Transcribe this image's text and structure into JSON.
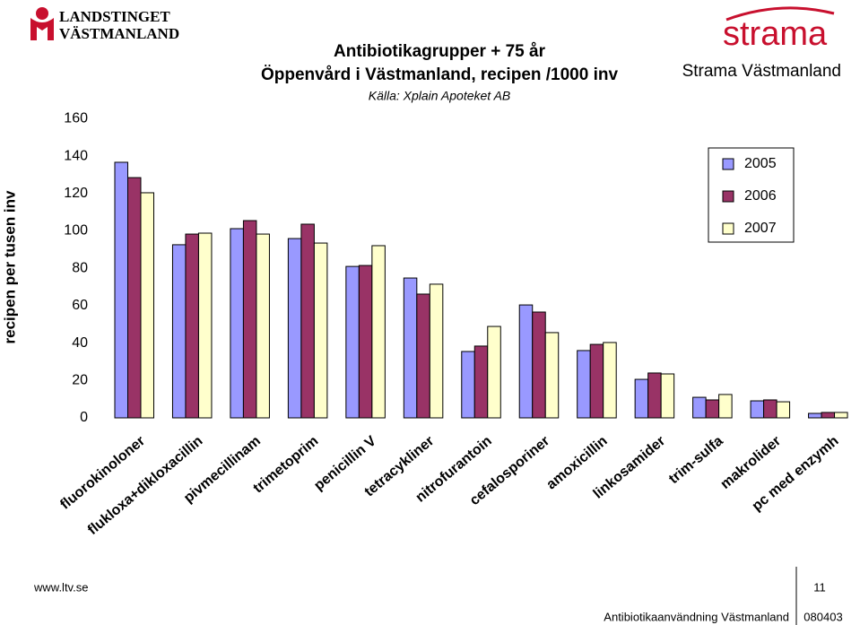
{
  "header": {
    "logo_line1": "LANDSTINGET",
    "logo_line2": "VÄSTMANLAND",
    "brand": "strama",
    "brand_sub": "Strama Västmanland"
  },
  "chart_data": {
    "type": "bar",
    "title": "Antibiotikagrupper + 75 år",
    "subtitle": "Öppenvård i Västmanland, recipen /1000 inv",
    "source": "Källa: Xplain Apoteket AB",
    "y_label": "recipen per tusen inv",
    "categories": [
      "fluorokinoloner",
      "flukloxa+dikloxacillin",
      "pivmecillinam",
      "trimetoprim",
      "penicillin V",
      "tetracykliner",
      "nitrofurantoin",
      "cefalosporiner",
      "amoxicillin",
      "linkosamider",
      "trim-sulfa",
      "makrolider",
      "pc med enzymh"
    ],
    "series": [
      {
        "name": "2005",
        "color": "#9999ff",
        "values": [
          136.7,
          92.6,
          101.2,
          95.9,
          81,
          74.8,
          35.5,
          60.4,
          36,
          20.6,
          11,
          9.1,
          2.4
        ]
      },
      {
        "name": "2006",
        "color": "#993366",
        "values": [
          128.5,
          98.3,
          105.5,
          103.6,
          81.5,
          66.2,
          38.4,
          56.6,
          39.3,
          24,
          9.6,
          9.6,
          2.9
        ]
      },
      {
        "name": "2007",
        "color": "#ffffcc",
        "values": [
          120.4,
          98.8,
          98.3,
          93.5,
          92.1,
          71.5,
          48.9,
          45.6,
          40.3,
          23.5,
          12.5,
          8.6,
          2.9
        ]
      }
    ],
    "ylim": [
      0,
      160
    ],
    "yticks": [
      0,
      20,
      40,
      60,
      80,
      100,
      120,
      140,
      160
    ],
    "legend": "upper right"
  },
  "footer": {
    "url": "www.ltv.se",
    "page": "11",
    "topic": "Antibiotikaanvändning Västmanland",
    "date": "080403"
  }
}
